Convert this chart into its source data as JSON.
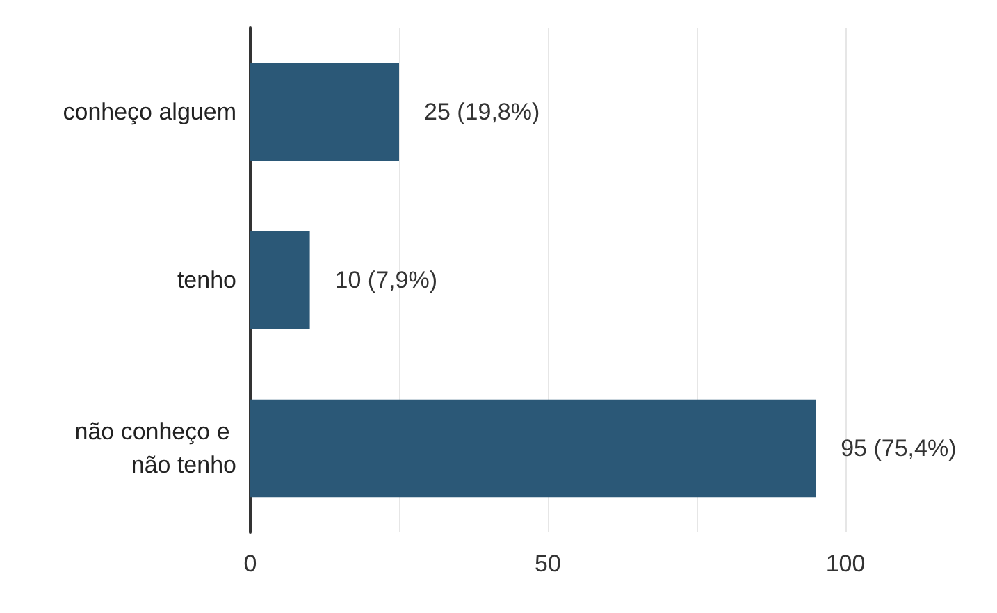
{
  "chart_data": {
    "type": "bar",
    "orientation": "horizontal",
    "categories": [
      "conheço alguem",
      "tenho",
      "não conheço e não tenho"
    ],
    "values": [
      25,
      10,
      95
    ],
    "color": "#2b5877",
    "value_labels": [
      "25 (19,8%)",
      "10 (7,9%)",
      "95 (75,4%)"
    ],
    "xlim": [
      0,
      100
    ],
    "xticks": [
      0,
      {
        "value": 25,
        "label": null
      },
      50,
      {
        "value": 75,
        "label": null
      },
      100
    ],
    "grid": "x"
  }
}
